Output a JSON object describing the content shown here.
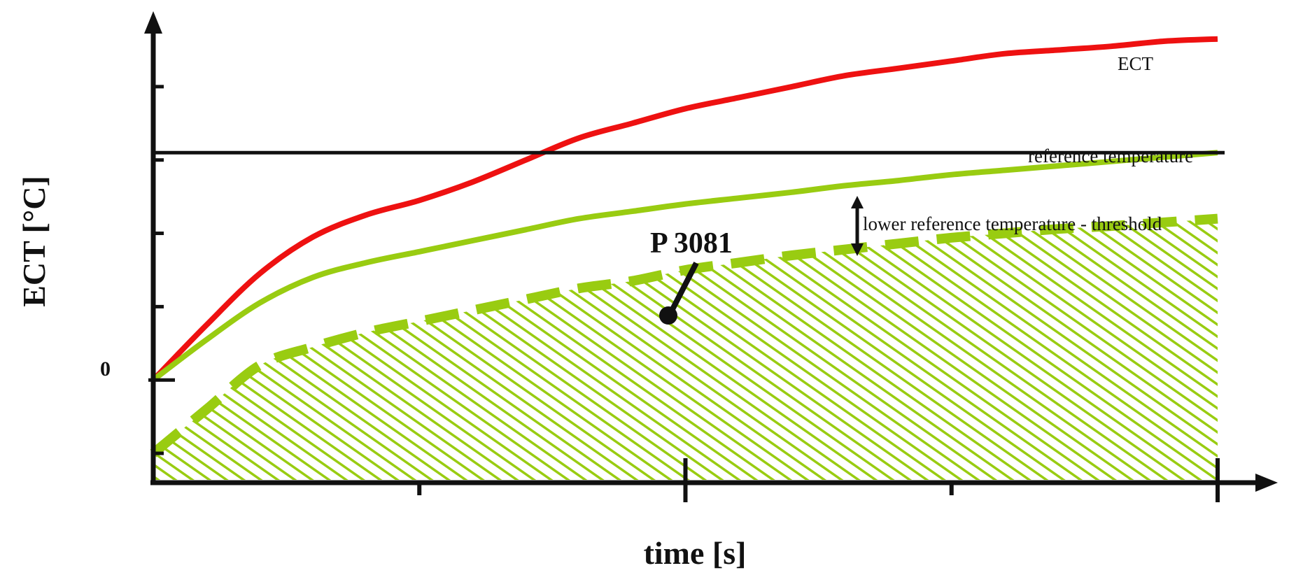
{
  "colors": {
    "ect": "#ee1111",
    "reference": "#99cc11",
    "threshold": "#99cc11",
    "hatch": "#99cc11",
    "axis": "#111111"
  },
  "chart_data": {
    "type": "line",
    "xlabel": "time [s]",
    "ylabel": "ECT [°C]",
    "ylim": [
      -1.4,
      4.8
    ],
    "xlim": [
      0,
      10.5
    ],
    "y_tick_labels": [
      "0"
    ],
    "grid": false,
    "series": [
      {
        "name": "ECT",
        "style": "solid",
        "x": [
          0,
          0.5,
          1,
          1.5,
          2,
          2.5,
          3,
          3.5,
          4,
          4.5,
          5,
          5.5,
          6,
          6.5,
          7,
          7.5,
          8,
          8.5,
          9,
          9.5,
          10
        ],
        "y": [
          0,
          0.75,
          1.45,
          1.95,
          2.25,
          2.45,
          2.7,
          3.0,
          3.3,
          3.5,
          3.7,
          3.85,
          4.0,
          4.15,
          4.25,
          4.35,
          4.45,
          4.5,
          4.55,
          4.62,
          4.65
        ]
      },
      {
        "name": "reference temperature",
        "style": "solid",
        "x": [
          0,
          0.5,
          1,
          1.5,
          2,
          2.5,
          3,
          3.5,
          4,
          4.5,
          5,
          5.5,
          6,
          6.5,
          7,
          7.5,
          8,
          8.5,
          9,
          9.5,
          10
        ],
        "y": [
          0,
          0.55,
          1.05,
          1.4,
          1.6,
          1.75,
          1.9,
          2.05,
          2.2,
          2.3,
          2.4,
          2.48,
          2.56,
          2.65,
          2.72,
          2.8,
          2.86,
          2.92,
          2.98,
          3.04,
          3.1
        ]
      },
      {
        "name": "lower reference temperature - threshold",
        "style": "dashed",
        "x": [
          0,
          0.5,
          1,
          1.5,
          2,
          2.5,
          3,
          3.5,
          4,
          4.5,
          5,
          5.5,
          6,
          6.5,
          7,
          7.5,
          8,
          8.5,
          9,
          9.5,
          10
        ],
        "y": [
          -1.0,
          -0.4,
          0.2,
          0.45,
          0.65,
          0.8,
          0.95,
          1.1,
          1.25,
          1.35,
          1.5,
          1.6,
          1.7,
          1.78,
          1.86,
          1.94,
          2.0,
          2.06,
          2.1,
          2.15,
          2.2
        ]
      },
      {
        "name": "",
        "style": "solid-black",
        "x": [
          0,
          10
        ],
        "y": [
          3.1,
          3.1
        ]
      }
    ],
    "annotations": [
      {
        "text": "P 3081",
        "x": 4.7,
        "y": 1.85
      }
    ]
  }
}
